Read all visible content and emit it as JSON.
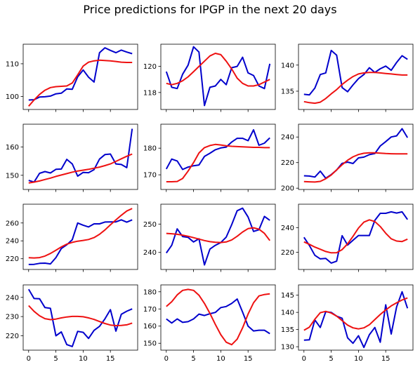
{
  "title": "Price predictions for IPGP in the next 20 days",
  "colors": {
    "actual": "#0000cc",
    "predicted": "#ee1111",
    "axes": "#000000",
    "background": "#ffffff"
  },
  "chart_data": [
    {
      "type": "line",
      "ylim": [
        96,
        116
      ],
      "xlim": [
        -1,
        20
      ],
      "yticks": [
        100,
        110
      ],
      "ytick_labels": [
        "100",
        "110"
      ],
      "x": [
        0,
        1,
        2,
        3,
        4,
        5,
        6,
        7,
        8,
        9,
        10,
        11,
        12,
        13,
        14,
        15,
        16,
        17,
        18,
        19
      ],
      "series": [
        {
          "color": "#0000cc",
          "values": [
            98.9,
            99.0,
            99.8,
            99.9,
            100.1,
            100.8,
            101.0,
            102.3,
            102.2,
            106.0,
            108.1,
            105.9,
            104.4,
            113.4,
            114.9,
            114.1,
            113.4,
            114.2,
            113.6,
            113.1
          ]
        },
        {
          "color": "#ee1111",
          "values": [
            97.0,
            98.9,
            100.6,
            101.9,
            102.7,
            103.0,
            103.1,
            103.2,
            104.1,
            106.6,
            109.3,
            110.5,
            110.9,
            111.1,
            111.0,
            110.9,
            110.7,
            110.5,
            110.4,
            110.4
          ]
        }
      ]
    },
    {
      "type": "line",
      "ylim": [
        116.7,
        121.7
      ],
      "xlim": [
        -1,
        20
      ],
      "yticks": [
        118,
        120
      ],
      "ytick_labels": [
        "118",
        "120"
      ],
      "x": [
        0,
        1,
        2,
        3,
        4,
        5,
        6,
        7,
        8,
        9,
        10,
        11,
        12,
        13,
        14,
        15,
        16,
        17,
        18,
        19
      ],
      "series": [
        {
          "color": "#0000cc",
          "values": [
            119.6,
            118.4,
            118.3,
            119.4,
            120.1,
            121.5,
            121.1,
            117.0,
            118.4,
            118.5,
            119.0,
            118.6,
            119.9,
            120.0,
            120.7,
            119.5,
            119.3,
            118.5,
            118.3,
            120.2
          ]
        },
        {
          "color": "#ee1111",
          "values": [
            118.7,
            118.6,
            118.7,
            118.9,
            119.2,
            119.6,
            120.0,
            120.4,
            120.8,
            121.0,
            120.9,
            120.4,
            119.8,
            119.1,
            118.7,
            118.5,
            118.5,
            118.6,
            118.8,
            119.0
          ]
        }
      ]
    },
    {
      "type": "line",
      "ylim": [
        131.5,
        144
      ],
      "xlim": [
        -1,
        20
      ],
      "yticks": [
        135,
        140
      ],
      "ytick_labels": [
        "135",
        "140"
      ],
      "x": [
        0,
        1,
        2,
        3,
        4,
        5,
        6,
        7,
        8,
        9,
        10,
        11,
        12,
        13,
        14,
        15,
        16,
        17,
        18,
        19
      ],
      "series": [
        {
          "color": "#0000cc",
          "values": [
            134.4,
            134.3,
            135.6,
            138.2,
            138.5,
            142.8,
            141.9,
            135.7,
            134.9,
            136.2,
            137.4,
            138.2,
            139.5,
            138.6,
            139.3,
            139.8,
            139.0,
            140.5,
            141.8,
            141.1
          ]
        },
        {
          "color": "#ee1111",
          "values": [
            133.0,
            132.8,
            132.7,
            132.9,
            133.6,
            134.5,
            135.3,
            136.3,
            137.1,
            137.8,
            138.3,
            138.5,
            138.6,
            138.6,
            138.5,
            138.4,
            138.3,
            138.2,
            138.1,
            138.1
          ]
        }
      ]
    },
    {
      "type": "line",
      "ylim": [
        145,
        168
      ],
      "xlim": [
        -1,
        20
      ],
      "yticks": [
        150,
        160
      ],
      "ytick_labels": [
        "150",
        "160"
      ],
      "x": [
        0,
        1,
        2,
        3,
        4,
        5,
        6,
        7,
        8,
        9,
        10,
        11,
        12,
        13,
        14,
        15,
        16,
        17,
        18,
        19
      ],
      "series": [
        {
          "color": "#0000cc",
          "values": [
            148.2,
            147.6,
            150.7,
            151.3,
            150.8,
            152.1,
            152.2,
            155.6,
            154.0,
            149.7,
            151.0,
            150.9,
            152.0,
            155.7,
            157.3,
            157.5,
            154.0,
            153.8,
            152.7,
            166.4
          ]
        },
        {
          "color": "#ee1111",
          "values": [
            147.3,
            147.6,
            148.0,
            148.5,
            149.0,
            149.6,
            150.1,
            150.6,
            151.1,
            151.5,
            151.8,
            152.1,
            152.5,
            152.9,
            153.4,
            154.0,
            154.9,
            155.8,
            156.7,
            157.5
          ]
        }
      ]
    },
    {
      "type": "line",
      "ylim": [
        164.5,
        189
      ],
      "xlim": [
        -1,
        20
      ],
      "yticks": [
        170,
        180
      ],
      "ytick_labels": [
        "170",
        "180"
      ],
      "x": [
        0,
        1,
        2,
        3,
        4,
        5,
        6,
        7,
        8,
        9,
        10,
        11,
        12,
        13,
        14,
        15,
        16,
        17,
        18,
        19
      ],
      "series": [
        {
          "color": "#0000cc",
          "values": [
            172.2,
            175.9,
            175.2,
            172.0,
            172.9,
            173.4,
            173.7,
            176.9,
            178.1,
            179.4,
            180.1,
            180.4,
            182.3,
            183.7,
            183.7,
            182.8,
            186.9,
            181.1,
            181.9,
            183.9
          ]
        },
        {
          "color": "#ee1111",
          "values": [
            167.4,
            167.4,
            167.5,
            168.6,
            171.4,
            174.6,
            178.2,
            180.2,
            181.0,
            181.4,
            181.2,
            180.9,
            180.7,
            180.6,
            180.5,
            180.4,
            180.3,
            180.3,
            180.2,
            180.2
          ]
        }
      ]
    },
    {
      "type": "line",
      "ylim": [
        199,
        250
      ],
      "xlim": [
        -1,
        20
      ],
      "yticks": [
        200,
        220,
        240
      ],
      "ytick_labels": [
        "200",
        "220",
        "240"
      ],
      "x": [
        0,
        1,
        2,
        3,
        4,
        5,
        6,
        7,
        8,
        9,
        10,
        11,
        12,
        13,
        14,
        15,
        16,
        17,
        18,
        19
      ],
      "series": [
        {
          "color": "#0000cc",
          "values": [
            209.7,
            209.5,
            208.7,
            213.3,
            207.8,
            210.6,
            214.2,
            219.4,
            220.4,
            219.3,
            223.7,
            224.3,
            226.2,
            227.1,
            233.0,
            236.4,
            240.0,
            240.9,
            246.5,
            239.5
          ]
        },
        {
          "color": "#ee1111",
          "values": [
            205.2,
            205.0,
            204.8,
            205.3,
            207.4,
            210.3,
            214.3,
            218.3,
            221.8,
            224.5,
            226.3,
            227.3,
            227.6,
            227.6,
            227.4,
            227.1,
            226.9,
            226.8,
            226.8,
            226.8
          ]
        }
      ]
    },
    {
      "type": "line",
      "ylim": [
        208,
        281
      ],
      "xlim": [
        -1,
        20
      ],
      "yticks": [
        220,
        240,
        260
      ],
      "ytick_labels": [
        "220",
        "240",
        "260"
      ],
      "x": [
        0,
        1,
        2,
        3,
        4,
        5,
        6,
        7,
        8,
        9,
        10,
        11,
        12,
        13,
        14,
        15,
        16,
        17,
        18,
        19
      ],
      "series": [
        {
          "color": "#0000cc",
          "values": [
            213.6,
            213.7,
            214.8,
            215.1,
            214.2,
            221.3,
            231.4,
            235.6,
            241.3,
            260.0,
            257.5,
            255.6,
            259.0,
            259.0,
            261.1,
            261.2,
            261.2,
            263.5,
            260.9,
            263.5
          ]
        },
        {
          "color": "#ee1111",
          "values": [
            221.1,
            220.9,
            221.3,
            223.0,
            225.9,
            229.5,
            233.2,
            236.3,
            238.3,
            239.6,
            240.5,
            241.5,
            243.6,
            247.3,
            252.2,
            257.9,
            263.4,
            268.6,
            273.4,
            276.2
          ]
        }
      ]
    },
    {
      "type": "line",
      "ylim": [
        234,
        257
      ],
      "xlim": [
        -1,
        20
      ],
      "yticks": [
        240,
        250
      ],
      "ytick_labels": [
        "240",
        "250"
      ],
      "x": [
        0,
        1,
        2,
        3,
        4,
        5,
        6,
        7,
        8,
        9,
        10,
        11,
        12,
        13,
        14,
        15,
        16,
        17,
        18,
        19
      ],
      "series": [
        {
          "color": "#0000cc",
          "values": [
            239.8,
            242.5,
            248.3,
            245.6,
            245.3,
            243.7,
            244.8,
            235.6,
            241.2,
            242.5,
            243.5,
            245.4,
            249.8,
            254.7,
            255.6,
            252.5,
            247.4,
            248.0,
            252.7,
            251.3
          ]
        },
        {
          "color": "#ee1111",
          "values": [
            246.7,
            246.6,
            246.4,
            246.1,
            245.7,
            245.2,
            244.7,
            244.2,
            243.8,
            243.6,
            243.5,
            243.7,
            244.4,
            245.7,
            247.2,
            248.4,
            248.7,
            248.2,
            246.7,
            244.2
          ]
        }
      ]
    },
    {
      "type": "line",
      "ylim": [
        206,
        259
      ],
      "xlim": [
        -1,
        20
      ],
      "yticks": [
        220,
        240
      ],
      "ytick_labels": [
        "220",
        "240"
      ],
      "x": [
        0,
        1,
        2,
        3,
        4,
        5,
        6,
        7,
        8,
        9,
        10,
        11,
        12,
        13,
        14,
        15,
        16,
        17,
        18,
        19
      ],
      "series": [
        {
          "color": "#0000cc",
          "values": [
            232.1,
            225.5,
            217.5,
            214.6,
            215.0,
            211.2,
            212.7,
            233.4,
            225.8,
            229.7,
            233.6,
            233.6,
            233.6,
            245.9,
            251.6,
            251.6,
            252.8,
            251.8,
            252.8,
            246.6
          ]
        },
        {
          "color": "#ee1111",
          "values": [
            228.4,
            226.4,
            224.2,
            222.4,
            220.6,
            219.5,
            219.6,
            222.1,
            226.8,
            232.9,
            239.6,
            244.4,
            246.3,
            244.9,
            240.9,
            235.4,
            230.9,
            229.1,
            228.7,
            230.6
          ]
        }
      ]
    },
    {
      "type": "line",
      "ylim": [
        212.5,
        246.5
      ],
      "xlim": [
        -1,
        20
      ],
      "yticks": [
        220,
        230,
        240
      ],
      "ytick_labels": [
        "220",
        "230",
        "240"
      ],
      "x": [
        0,
        1,
        2,
        3,
        4,
        5,
        6,
        7,
        8,
        9,
        10,
        11,
        12,
        13,
        14,
        15,
        16,
        17,
        18,
        19
      ],
      "series": [
        {
          "color": "#0000cc",
          "values": [
            244.2,
            239.4,
            239.3,
            234.7,
            234.3,
            220.0,
            222.0,
            215.4,
            214.4,
            222.3,
            221.8,
            218.6,
            222.8,
            224.9,
            228.8,
            233.6,
            222.4,
            231.2,
            232.8,
            234.0
          ]
        },
        {
          "color": "#ee1111",
          "values": [
            235.7,
            232.7,
            230.4,
            228.9,
            228.4,
            228.7,
            229.3,
            229.8,
            230.1,
            230.1,
            229.9,
            229.3,
            228.5,
            227.4,
            226.4,
            225.6,
            225.3,
            225.4,
            225.7,
            226.6
          ]
        }
      ]
    },
    {
      "type": "line",
      "ylim": [
        146,
        184
      ],
      "xlim": [
        -1,
        20
      ],
      "yticks": [
        150,
        160,
        170,
        180
      ],
      "ytick_labels": [
        "150",
        "160",
        "170",
        "180"
      ],
      "x": [
        0,
        1,
        2,
        3,
        4,
        5,
        6,
        7,
        8,
        9,
        10,
        11,
        12,
        13,
        14,
        15,
        16,
        17,
        18,
        19
      ],
      "series": [
        {
          "color": "#0000cc",
          "values": [
            164.2,
            161.8,
            164.2,
            162.2,
            162.6,
            164.2,
            167.0,
            166.2,
            167.2,
            168.0,
            170.8,
            171.4,
            173.2,
            175.8,
            168.2,
            160.0,
            157.2,
            157.6,
            157.6,
            155.6
          ]
        },
        {
          "color": "#ee1111",
          "values": [
            171.4,
            174.2,
            178.2,
            180.8,
            181.4,
            180.8,
            178.0,
            173.2,
            167.4,
            161.0,
            155.0,
            150.6,
            149.2,
            152.4,
            159.0,
            167.0,
            173.6,
            177.6,
            178.4,
            178.8
          ]
        }
      ]
    },
    {
      "type": "line",
      "ylim": [
        129,
        148
      ],
      "xlim": [
        -1,
        20
      ],
      "yticks": [
        130,
        135,
        140,
        145
      ],
      "ytick_labels": [
        "130",
        "135",
        "140",
        "145"
      ],
      "x": [
        0,
        1,
        2,
        3,
        4,
        5,
        6,
        7,
        8,
        9,
        10,
        11,
        12,
        13,
        14,
        15,
        16,
        17,
        18,
        19
      ],
      "series": [
        {
          "color": "#0000cc",
          "values": [
            131.9,
            132.0,
            137.8,
            135.6,
            140.2,
            140.0,
            138.9,
            138.3,
            132.6,
            131.0,
            133.2,
            129.8,
            133.5,
            135.6,
            131.3,
            142.2,
            133.7,
            141.6,
            146.0,
            141.2
          ]
        },
        {
          "color": "#ee1111",
          "values": [
            134.8,
            135.7,
            138.0,
            139.9,
            140.3,
            139.8,
            138.9,
            137.6,
            136.3,
            135.5,
            135.2,
            135.5,
            136.4,
            137.9,
            139.4,
            140.7,
            141.9,
            142.8,
            143.6,
            144.2
          ]
        }
      ]
    }
  ],
  "xtick_values": [
    0,
    5,
    10,
    15
  ],
  "xtick_labels": [
    "0",
    "5",
    "10",
    "15"
  ]
}
